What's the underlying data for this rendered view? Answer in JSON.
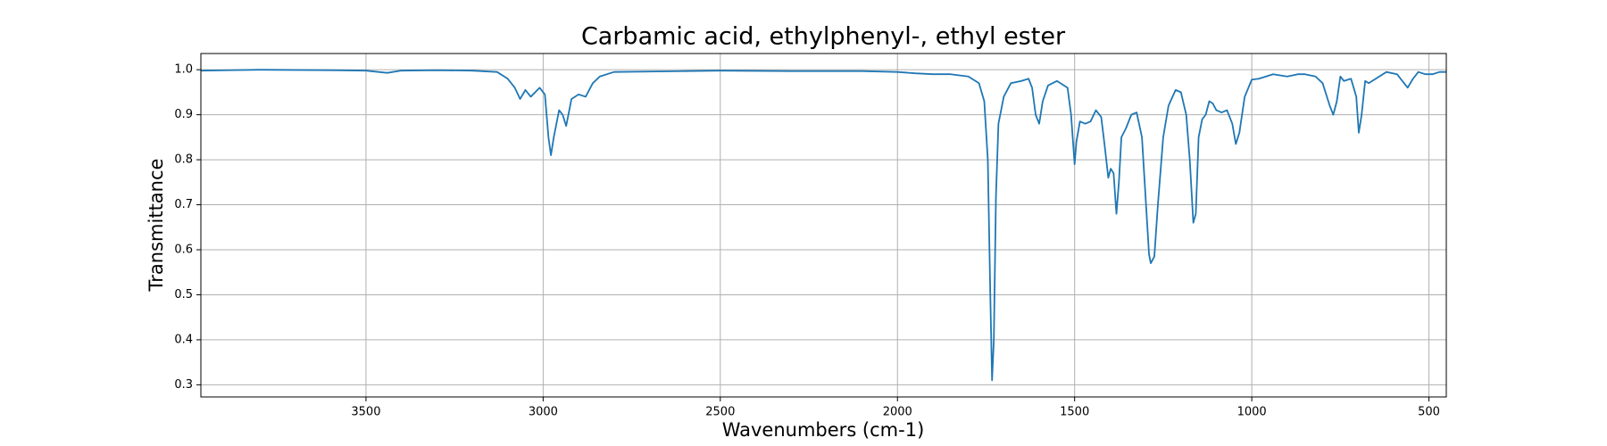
{
  "chart_data": {
    "type": "line",
    "title": "Carbamic acid, ethylphenyl-, ethyl ester",
    "xlabel": "Wavenumbers (cm-1)",
    "ylabel": "Transmittance",
    "x": [
      3966,
      3800,
      3600,
      3500,
      3440,
      3400,
      3300,
      3200,
      3130,
      3100,
      3080,
      3065,
      3050,
      3035,
      3010,
      2995,
      2985,
      2978,
      2970,
      2955,
      2945,
      2935,
      2920,
      2900,
      2880,
      2860,
      2840,
      2800,
      2600,
      2500,
      2300,
      2100,
      2000,
      1950,
      1900,
      1850,
      1800,
      1770,
      1755,
      1745,
      1738,
      1733,
      1728,
      1722,
      1715,
      1700,
      1680,
      1650,
      1630,
      1620,
      1610,
      1600,
      1590,
      1575,
      1550,
      1520,
      1510,
      1500,
      1495,
      1485,
      1470,
      1455,
      1440,
      1425,
      1415,
      1405,
      1398,
      1390,
      1382,
      1375,
      1368,
      1355,
      1340,
      1325,
      1310,
      1300,
      1290,
      1285,
      1275,
      1265,
      1250,
      1235,
      1215,
      1200,
      1185,
      1175,
      1165,
      1158,
      1150,
      1140,
      1130,
      1120,
      1110,
      1100,
      1085,
      1070,
      1055,
      1045,
      1035,
      1020,
      1000,
      980,
      960,
      940,
      900,
      870,
      850,
      820,
      800,
      780,
      770,
      760,
      750,
      740,
      720,
      705,
      698,
      690,
      680,
      670,
      650,
      620,
      590,
      570,
      560,
      545,
      530,
      510,
      490,
      470,
      451
    ],
    "values": [
      0.998,
      1.0,
      0.999,
      0.998,
      0.993,
      0.998,
      0.999,
      0.998,
      0.995,
      0.98,
      0.96,
      0.935,
      0.955,
      0.94,
      0.96,
      0.945,
      0.85,
      0.81,
      0.85,
      0.91,
      0.9,
      0.875,
      0.935,
      0.945,
      0.94,
      0.97,
      0.985,
      0.995,
      0.997,
      0.998,
      0.997,
      0.997,
      0.995,
      0.992,
      0.99,
      0.99,
      0.985,
      0.97,
      0.93,
      0.8,
      0.5,
      0.31,
      0.4,
      0.72,
      0.88,
      0.94,
      0.97,
      0.975,
      0.98,
      0.96,
      0.9,
      0.88,
      0.93,
      0.965,
      0.975,
      0.96,
      0.9,
      0.79,
      0.84,
      0.885,
      0.88,
      0.885,
      0.91,
      0.895,
      0.83,
      0.76,
      0.78,
      0.77,
      0.68,
      0.75,
      0.85,
      0.87,
      0.9,
      0.905,
      0.85,
      0.72,
      0.59,
      0.57,
      0.585,
      0.7,
      0.85,
      0.92,
      0.955,
      0.95,
      0.9,
      0.8,
      0.66,
      0.68,
      0.85,
      0.89,
      0.9,
      0.93,
      0.925,
      0.91,
      0.905,
      0.91,
      0.88,
      0.835,
      0.86,
      0.94,
      0.978,
      0.98,
      0.985,
      0.99,
      0.985,
      0.99,
      0.99,
      0.985,
      0.97,
      0.92,
      0.9,
      0.93,
      0.985,
      0.975,
      0.98,
      0.94,
      0.86,
      0.9,
      0.975,
      0.97,
      0.98,
      0.995,
      0.99,
      0.97,
      0.96,
      0.98,
      0.995,
      0.99,
      0.99,
      0.995,
      0.995
    ],
    "color": "#1f77b4",
    "xlim": [
      3966,
      451
    ],
    "ylim": [
      0.273,
      1.036
    ],
    "xticks": [
      3500,
      3000,
      2500,
      2000,
      1500,
      1000,
      500
    ],
    "yticks": [
      0.3,
      0.4,
      0.5,
      0.6,
      0.7,
      0.8,
      0.9,
      {
        "value": 1,
        "label": "1.0"
      }
    ],
    "grid": true
  }
}
